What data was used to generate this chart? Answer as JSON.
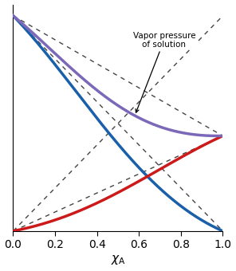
{
  "xlabel": "$\\chi_{\\rm A}$",
  "xlim": [
    0.0,
    1.0
  ],
  "ylim": [
    0.0,
    1.0
  ],
  "xticks": [
    0.0,
    0.2,
    0.4,
    0.6,
    0.8,
    1.0
  ],
  "blue_color": "#1a5faa",
  "red_color": "#cc1a1a",
  "purple_color": "#7b68b8",
  "dashed_color": "#444444",
  "P_B_star": 0.95,
  "P_A_star": 0.42,
  "neg_dev_param": 0.85,
  "annotation_text": "Vapor pressure\nof solution",
  "figsize": [
    2.96,
    3.4
  ],
  "dpi": 100
}
